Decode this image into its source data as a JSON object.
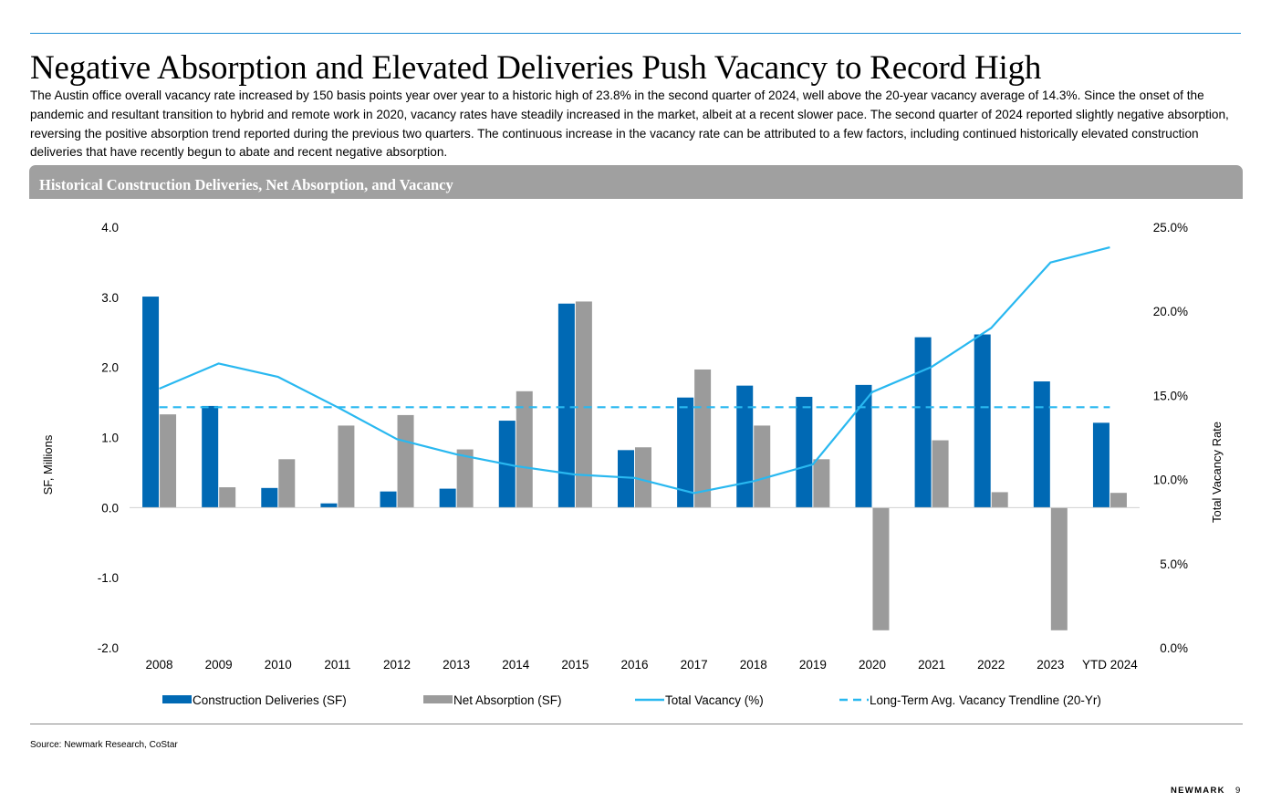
{
  "page": {
    "title": "Negative Absorption and Elevated Deliveries Push Vacancy to Record High",
    "body": "The Austin office overall vacancy rate increased by 150 basis points year over year to a historic high of 23.8% in the second quarter of 2024, well above the 20-year vacancy average of 14.3%. Since the onset of the pandemic and resultant transition to hybrid and remote work in 2020, vacancy rates have steadily increased in the market, albeit at a recent slower pace. The second quarter of 2024 reported slightly negative absorption, reversing the positive absorption trend reported during the previous two quarters. The continuous increase in the vacancy rate can be attributed to a few factors, including continued historically elevated construction deliveries that have recently begun to abate and recent negative absorption.",
    "chart_header": "Historical Construction Deliveries, Net Absorption, and Vacancy",
    "source": "Source: Newmark Research, CoStar",
    "brand": "NEWMARK",
    "page_number": "9"
  },
  "chart_data": {
    "type": "bar",
    "categories": [
      "2008",
      "2009",
      "2010",
      "2011",
      "2012",
      "2013",
      "2014",
      "2015",
      "2016",
      "2017",
      "2018",
      "2019",
      "2020",
      "2021",
      "2022",
      "2023",
      "YTD 2024"
    ],
    "series": [
      {
        "name": "Construction Deliveries (SF)",
        "type": "bar",
        "axis": "left",
        "color": "#0069b4",
        "values": [
          3.01,
          1.45,
          0.28,
          0.06,
          0.23,
          0.27,
          1.24,
          2.91,
          0.82,
          1.57,
          1.74,
          1.58,
          1.75,
          2.43,
          2.47,
          1.8,
          1.21
        ]
      },
      {
        "name": "Net Absorption (SF)",
        "type": "bar",
        "axis": "left",
        "color": "#9b9b9b",
        "values": [
          1.33,
          0.29,
          0.69,
          1.17,
          1.32,
          0.83,
          1.66,
          2.94,
          0.86,
          1.97,
          1.17,
          0.69,
          -1.75,
          0.96,
          0.22,
          -1.75,
          0.21
        ]
      },
      {
        "name": "Total Vacancy (%)",
        "type": "line",
        "axis": "right",
        "color": "#29b8f0",
        "values": [
          15.4,
          16.9,
          16.1,
          14.3,
          12.4,
          11.5,
          10.8,
          10.3,
          10.1,
          9.2,
          9.9,
          10.9,
          15.2,
          16.7,
          19.0,
          22.9,
          23.8
        ]
      },
      {
        "name": "Long-Term Avg. Vacancy Trendline (20-Yr)",
        "type": "line",
        "style": "dashed",
        "axis": "right",
        "color": "#29b8f0",
        "values": [
          14.3,
          14.3,
          14.3,
          14.3,
          14.3,
          14.3,
          14.3,
          14.3,
          14.3,
          14.3,
          14.3,
          14.3,
          14.3,
          14.3,
          14.3,
          14.3,
          14.3
        ]
      }
    ],
    "ylabel": "SF, Millions",
    "y2label": "Total Vacancy Rate",
    "ylim": [
      -2.0,
      4.0
    ],
    "yticks": [
      "4.0",
      "3.0",
      "2.0",
      "1.0",
      "0.0",
      "-1.0",
      "-2.0"
    ],
    "y2lim": [
      0,
      25
    ],
    "y2ticks": [
      "25.0%",
      "20.0%",
      "15.0%",
      "10.0%",
      "5.0%",
      "0.0%"
    ],
    "legend_position": "bottom",
    "grid": false
  }
}
